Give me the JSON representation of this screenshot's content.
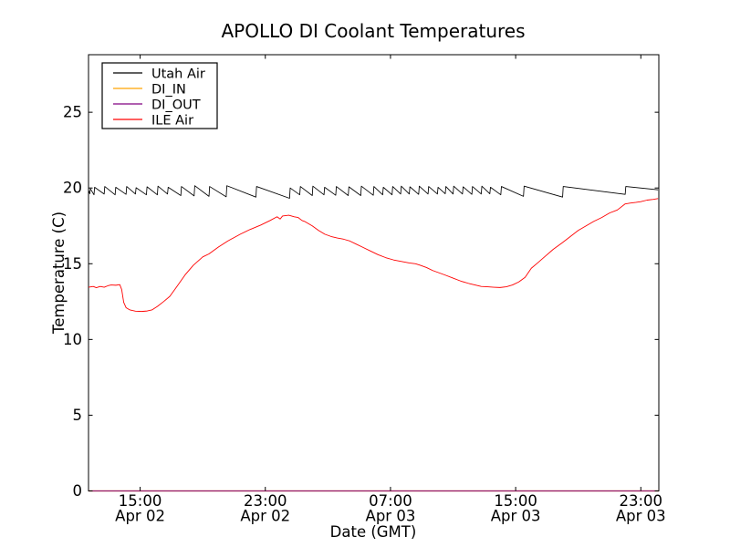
{
  "chart_data": {
    "type": "line",
    "title": "APOLLO DI Coolant Temperatures",
    "xlabel": "Date (GMT)",
    "ylabel": "Temperature (C)",
    "x_unit": "hours since Apr 02 00:00 GMT",
    "xlim": [
      11.7,
      48.15
    ],
    "ylim": [
      0,
      28.8
    ],
    "grid": false,
    "legend_position": "upper left",
    "x_ticks": [
      {
        "value": 15,
        "time": "15:00",
        "date": "Apr 02"
      },
      {
        "value": 23,
        "time": "23:00",
        "date": "Apr 02"
      },
      {
        "value": 31,
        "time": "07:00",
        "date": "Apr 03"
      },
      {
        "value": 39,
        "time": "15:00",
        "date": "Apr 03"
      },
      {
        "value": 47,
        "time": "23:00",
        "date": "Apr 03"
      }
    ],
    "y_ticks": [
      0,
      5,
      10,
      15,
      20,
      25
    ],
    "series": [
      {
        "name": "Utah Air",
        "color": "#000000",
        "width": 0.85,
        "opacity": 1,
        "x": [
          11.7,
          11.78,
          11.82,
          12.05,
          12.09,
          12.7,
          12.74,
          13.4,
          13.44,
          14.1,
          14.14,
          14.7,
          14.74,
          15.4,
          15.44,
          16.1,
          16.14,
          16.75,
          16.79,
          17.6,
          17.64,
          18.45,
          18.49,
          19.4,
          19.44,
          20.5,
          20.54,
          22.4,
          22.44,
          24.55,
          24.59,
          25.2,
          25.24,
          26.0,
          26.04,
          26.75,
          26.79,
          27.5,
          27.54,
          28.3,
          28.34,
          29.1,
          29.14,
          29.9,
          29.94,
          30.5,
          30.54,
          31.1,
          31.14,
          31.65,
          31.69,
          32.2,
          32.24,
          32.8,
          32.84,
          33.4,
          33.44,
          34.0,
          34.04,
          34.5,
          34.54,
          35.0,
          35.04,
          35.6,
          35.64,
          36.2,
          36.24,
          36.8,
          36.84,
          37.35,
          37.39,
          38.05,
          38.09,
          39.5,
          39.54,
          42.0,
          42.04,
          46.0,
          46.04,
          48.1
        ],
        "y": [
          19.85,
          19.62,
          19.95,
          19.55,
          20.05,
          19.6,
          20.1,
          19.55,
          20.05,
          19.58,
          20.1,
          19.6,
          20.02,
          19.55,
          20.08,
          19.55,
          20.12,
          19.6,
          20.05,
          19.5,
          20.1,
          19.48,
          20.15,
          19.45,
          20.1,
          19.42,
          20.15,
          19.4,
          20.1,
          19.32,
          20.0,
          19.55,
          20.1,
          19.5,
          20.12,
          19.55,
          20.05,
          19.52,
          20.1,
          19.5,
          20.08,
          19.5,
          20.12,
          19.52,
          20.1,
          19.55,
          20.05,
          19.55,
          20.1,
          19.6,
          20.12,
          19.6,
          20.08,
          19.58,
          20.12,
          19.6,
          20.1,
          19.6,
          20.05,
          19.62,
          20.1,
          19.6,
          20.12,
          19.6,
          20.08,
          19.58,
          20.1,
          19.6,
          20.12,
          19.62,
          20.05,
          19.55,
          20.1,
          19.45,
          20.12,
          19.4,
          20.1,
          19.58,
          20.1,
          19.88
        ]
      },
      {
        "name": "DI_IN",
        "color": "#ffa500",
        "width": 1.2,
        "opacity": 1,
        "x": [
          11.7,
          48.15
        ],
        "y": [
          0,
          0
        ]
      },
      {
        "name": "DI_OUT",
        "color": "#800080",
        "width": 1.2,
        "opacity": 0.85,
        "x": [
          11.7,
          48.15
        ],
        "y": [
          0,
          0
        ]
      },
      {
        "name": "ILE Air",
        "color": "#ff0000",
        "width": 0.9,
        "opacity": 1,
        "x": [
          11.7,
          12.0,
          12.2,
          12.45,
          12.7,
          12.95,
          13.15,
          13.45,
          13.7,
          13.82,
          13.95,
          14.1,
          14.35,
          14.7,
          15.1,
          15.45,
          15.75,
          16.1,
          16.5,
          16.9,
          17.35,
          17.9,
          18.4,
          19.0,
          19.4,
          20.0,
          20.6,
          21.4,
          22.0,
          22.7,
          23.3,
          23.75,
          23.95,
          24.1,
          24.5,
          24.85,
          25.1,
          25.35,
          25.5,
          26.0,
          26.4,
          26.8,
          27.2,
          27.6,
          28.0,
          28.4,
          28.8,
          29.2,
          29.7,
          30.2,
          30.7,
          31.2,
          31.7,
          32.2,
          32.6,
          32.9,
          33.3,
          33.7,
          34.1,
          34.5,
          35.0,
          35.5,
          36.0,
          36.4,
          36.8,
          37.2,
          37.6,
          38.0,
          38.4,
          38.8,
          39.2,
          39.6,
          40.0,
          40.4,
          40.9,
          41.4,
          42.0,
          42.5,
          43.0,
          43.5,
          44.0,
          44.5,
          45.0,
          45.5,
          46.0,
          46.3,
          46.7,
          47.0,
          47.4,
          47.8,
          48.1
        ],
        "y": [
          13.45,
          13.5,
          13.42,
          13.5,
          13.45,
          13.55,
          13.6,
          13.58,
          13.62,
          13.3,
          12.45,
          12.1,
          11.95,
          11.87,
          11.85,
          11.88,
          11.95,
          12.18,
          12.5,
          12.85,
          13.5,
          14.3,
          14.9,
          15.45,
          15.65,
          16.1,
          16.5,
          16.95,
          17.25,
          17.55,
          17.85,
          18.1,
          17.95,
          18.15,
          18.2,
          18.1,
          18.05,
          17.85,
          17.8,
          17.5,
          17.2,
          16.95,
          16.8,
          16.7,
          16.62,
          16.5,
          16.3,
          16.1,
          15.85,
          15.6,
          15.4,
          15.25,
          15.15,
          15.05,
          15.0,
          14.9,
          14.75,
          14.55,
          14.4,
          14.25,
          14.05,
          13.85,
          13.7,
          13.6,
          13.5,
          13.48,
          13.45,
          13.43,
          13.48,
          13.6,
          13.8,
          14.1,
          14.7,
          15.05,
          15.5,
          15.95,
          16.4,
          16.8,
          17.2,
          17.5,
          17.8,
          18.05,
          18.35,
          18.55,
          18.95,
          19.0,
          19.05,
          19.1,
          19.2,
          19.25,
          19.3
        ]
      }
    ]
  }
}
